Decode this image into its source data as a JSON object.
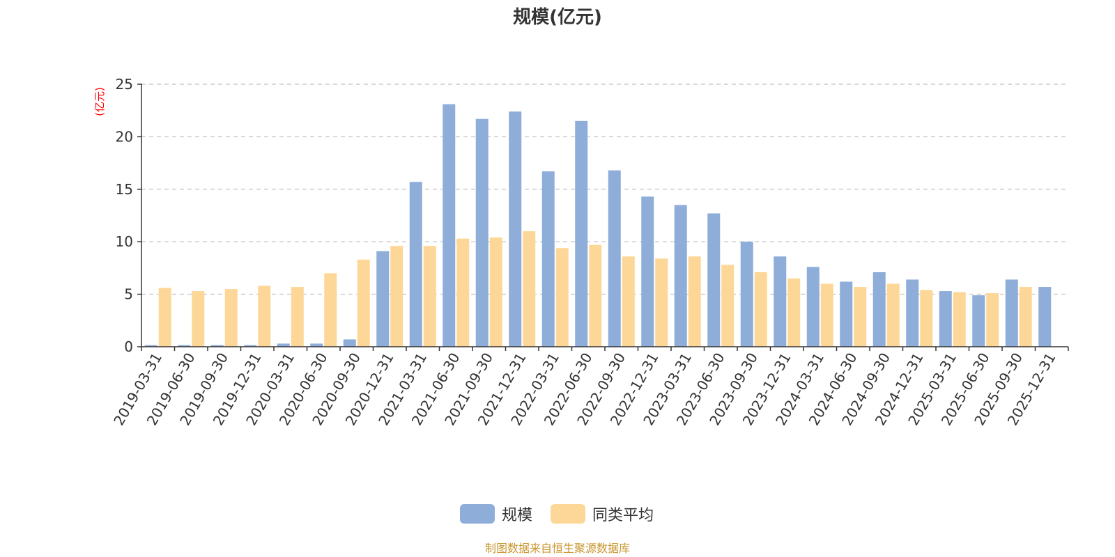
{
  "chart_data": {
    "type": "bar",
    "title": "规模(亿元)",
    "ylabel": "(亿元)",
    "ylim": [
      0,
      25
    ],
    "yticks": [
      0,
      5,
      10,
      15,
      20,
      25
    ],
    "grid": true,
    "legend_position": "bottom-center",
    "categories": [
      "2019-03-31",
      "2019-06-30",
      "2019-09-30",
      "2019-12-31",
      "2020-03-31",
      "2020-06-30",
      "2020-09-30",
      "2020-12-31",
      "2021-03-31",
      "2021-06-30",
      "2021-09-30",
      "2021-12-31",
      "2022-03-31",
      "2022-06-30",
      "2022-09-30",
      "2022-12-31",
      "2023-03-31",
      "2023-06-30",
      "2023-09-30",
      "2023-12-31",
      "2024-03-31",
      "2024-06-30",
      "2024-09-30",
      "2024-12-31",
      "2025-03-31",
      "2025-06-30",
      "2025-09-30",
      "2025-12-31"
    ],
    "series": [
      {
        "name": "规模",
        "color": "#8eadd9",
        "values": [
          0.15,
          0.15,
          0.15,
          0.15,
          0.3,
          0.3,
          0.7,
          9.1,
          15.7,
          23.1,
          21.7,
          22.4,
          16.7,
          21.5,
          16.8,
          14.3,
          13.5,
          12.7,
          10.0,
          8.6,
          7.6,
          6.2,
          7.1,
          6.4,
          5.3,
          4.9,
          6.4,
          5.7
        ]
      },
      {
        "name": "同类平均",
        "color": "#fdd797",
        "values": [
          5.6,
          5.3,
          5.5,
          5.8,
          5.7,
          7.0,
          8.3,
          9.6,
          9.6,
          10.3,
          10.4,
          11.0,
          9.4,
          9.7,
          8.6,
          8.4,
          8.6,
          7.8,
          7.1,
          6.5,
          6.0,
          5.7,
          6.0,
          5.4,
          5.2,
          5.1,
          5.7,
          null
        ]
      }
    ]
  },
  "source_text": "制图数据来自恒生聚源数据库",
  "colors": {
    "axis": "#333333",
    "grid": "#cccccc",
    "ylabel": "#ff0000",
    "source": "#c8962e"
  }
}
